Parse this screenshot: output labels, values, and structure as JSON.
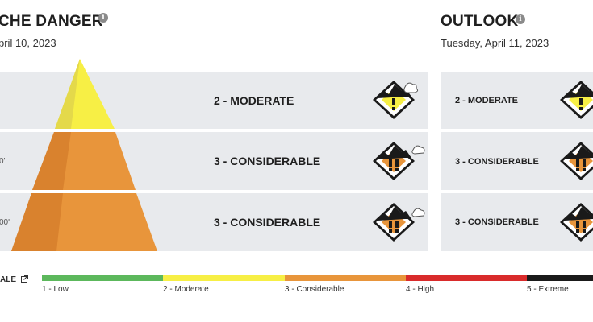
{
  "forecast": {
    "title": "CHE DANGER",
    "date": "pril 10, 2023",
    "info_icon": "info-icon",
    "rows": [
      {
        "elevation": "",
        "rating": "2 - MODERATE",
        "level": 2
      },
      {
        "elevation": "0'",
        "rating": "3 - CONSIDERABLE",
        "level": 3
      },
      {
        "elevation": "00'",
        "rating": "3 - CONSIDERABLE",
        "level": 3
      }
    ]
  },
  "outlook": {
    "title": "OUTLOOK",
    "date": "Tuesday, April 11, 2023",
    "info_icon": "info-icon",
    "rows": [
      {
        "rating": "2 - MODERATE",
        "level": 2
      },
      {
        "rating": "3 - CONSIDERABLE",
        "level": 3
      },
      {
        "rating": "3 - CONSIDERABLE",
        "level": 3
      }
    ]
  },
  "scale": {
    "label": "ALE",
    "link_icon": "external-link-icon",
    "levels": [
      {
        "label": "1 - Low",
        "color": "#5cb85c"
      },
      {
        "label": "2 - Moderate",
        "color": "#f7ef45"
      },
      {
        "label": "3 - Considerable",
        "color": "#e8953b"
      },
      {
        "label": "4 - High",
        "color": "#d92b2b"
      },
      {
        "label": "5 - Extreme",
        "color": "#1a1a1a"
      }
    ]
  },
  "colors": {
    "moderate": "#f7ef45",
    "considerable": "#e8953b",
    "band": "#e8eaed"
  }
}
